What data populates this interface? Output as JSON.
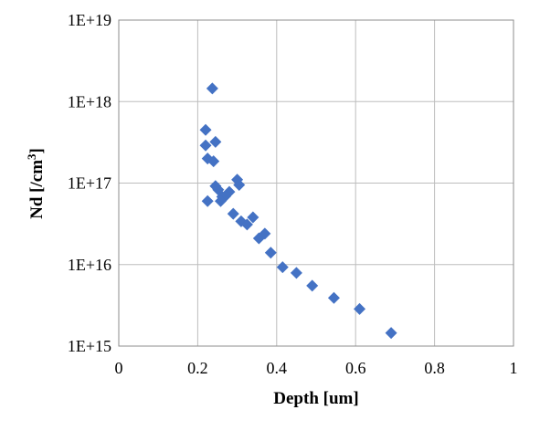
{
  "chart_data": {
    "type": "scatter",
    "title": "",
    "xlabel": "Depth [um]",
    "ylabel": {
      "prefix": "Nd [/cm",
      "superscript": "3",
      "suffix": "]"
    },
    "x_scale": "linear",
    "y_scale": "log",
    "xlim": [
      0,
      1
    ],
    "ylim": [
      1000000000000000.0,
      1e+19
    ],
    "x_ticks": [
      0,
      0.2,
      0.4,
      0.6,
      0.8,
      1
    ],
    "x_tick_labels": [
      "0",
      "0.2",
      "0.4",
      "0.6",
      "0.8",
      "1"
    ],
    "y_ticks": [
      1000000000000000.0,
      1e+16,
      1e+17,
      1e+18,
      1e+19
    ],
    "y_tick_labels": [
      "1E+15",
      "1E+16",
      "1E+17",
      "1E+18",
      "1E+19"
    ],
    "grid": true,
    "legend": "none",
    "marker": "diamond",
    "marker_color": "#4472C4",
    "points": [
      {
        "x": 0.237,
        "y": 1.45e+18
      },
      {
        "x": 0.22,
        "y": 4.5e+17
      },
      {
        "x": 0.245,
        "y": 3.2e+17
      },
      {
        "x": 0.22,
        "y": 2.9e+17
      },
      {
        "x": 0.225,
        "y": 2e+17
      },
      {
        "x": 0.24,
        "y": 1.85e+17
      },
      {
        "x": 0.3,
        "y": 1.1e+17
      },
      {
        "x": 0.305,
        "y": 9.5e+16
      },
      {
        "x": 0.245,
        "y": 9.2e+16
      },
      {
        "x": 0.252,
        "y": 8.3e+16
      },
      {
        "x": 0.28,
        "y": 7.8e+16
      },
      {
        "x": 0.262,
        "y": 6.8e+16
      },
      {
        "x": 0.27,
        "y": 6.9e+16
      },
      {
        "x": 0.258,
        "y": 6e+16
      },
      {
        "x": 0.225,
        "y": 6e+16
      },
      {
        "x": 0.29,
        "y": 4.2e+16
      },
      {
        "x": 0.34,
        "y": 3.8e+16
      },
      {
        "x": 0.31,
        "y": 3.4e+16
      },
      {
        "x": 0.325,
        "y": 3.1e+16
      },
      {
        "x": 0.37,
        "y": 2.4e+16
      },
      {
        "x": 0.355,
        "y": 2.1e+16
      },
      {
        "x": 0.385,
        "y": 1.4e+16
      },
      {
        "x": 0.415,
        "y": 9300000000000000.0
      },
      {
        "x": 0.45,
        "y": 7900000000000000.0
      },
      {
        "x": 0.49,
        "y": 5500000000000000.0
      },
      {
        "x": 0.545,
        "y": 3900000000000000.0
      },
      {
        "x": 0.61,
        "y": 2850000000000000.0
      },
      {
        "x": 0.69,
        "y": 1450000000000000.0
      }
    ]
  }
}
